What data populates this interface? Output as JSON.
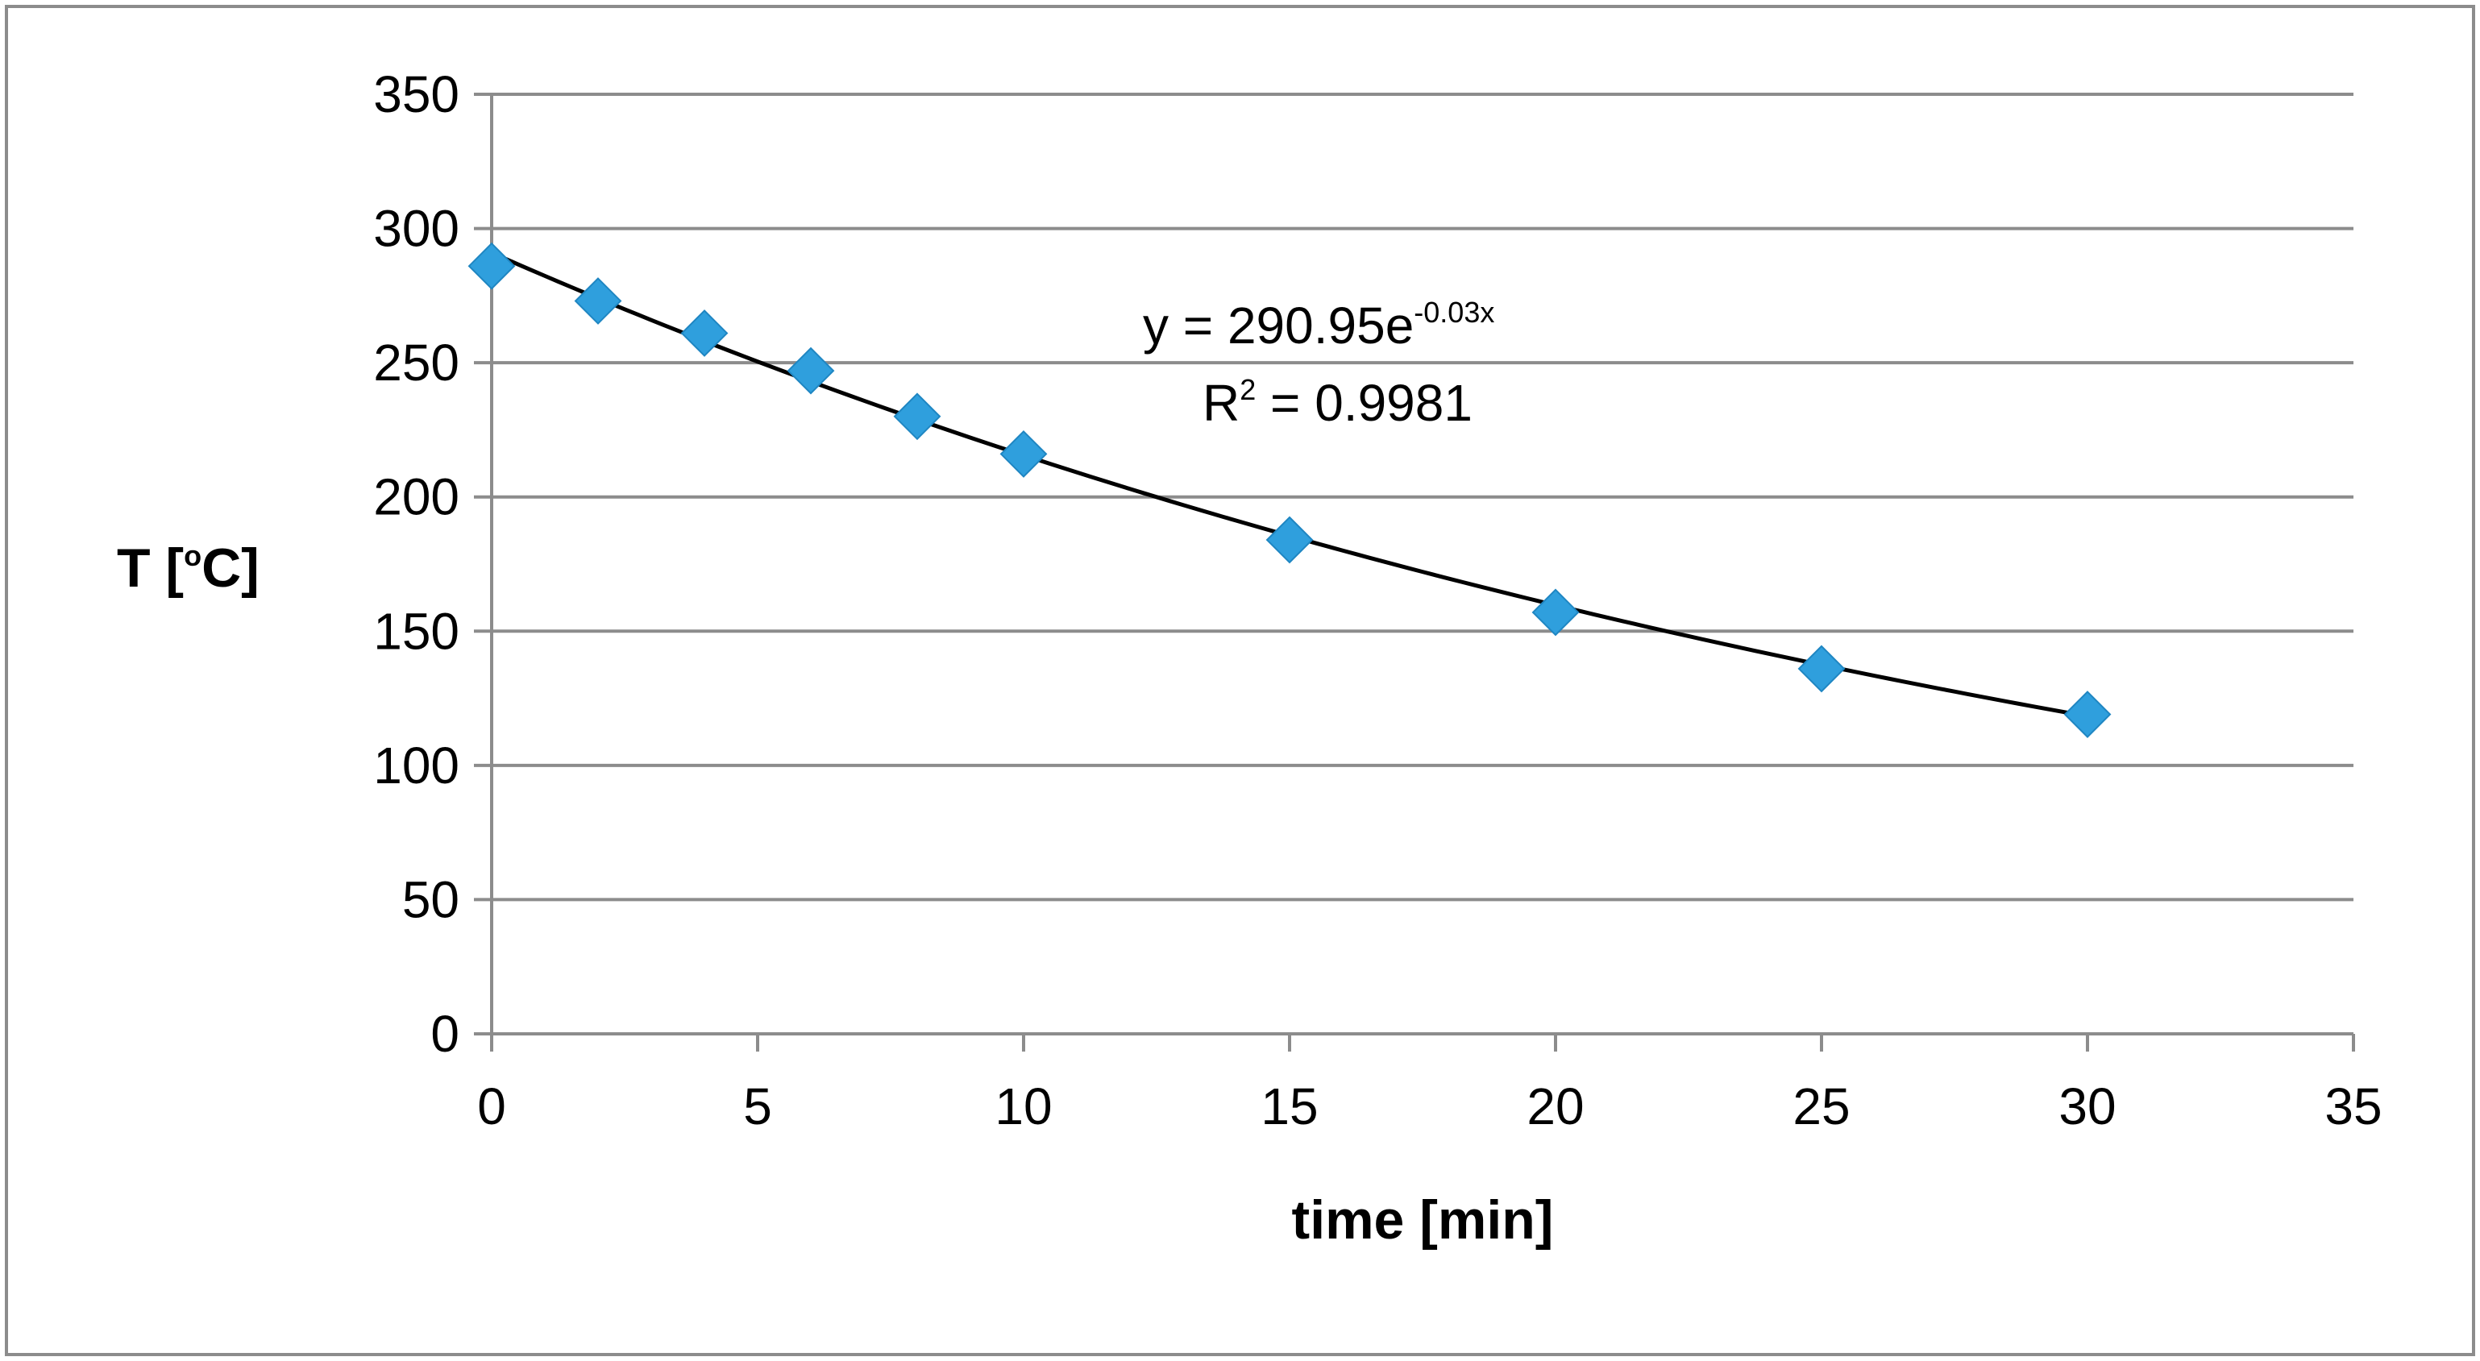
{
  "chart_data": {
    "type": "scatter",
    "title": "",
    "xlabel": "time [min]",
    "ylabel_main": "T [",
    "ylabel_sup": "o",
    "ylabel_tail": "C]",
    "xlim": [
      0,
      35
    ],
    "ylim": [
      0,
      350
    ],
    "xticks": [
      0,
      5,
      10,
      15,
      20,
      25,
      30,
      35
    ],
    "yticks": [
      0,
      50,
      100,
      150,
      200,
      250,
      300,
      350
    ],
    "grid": "horizontal",
    "series": [
      {
        "name": "T",
        "x": [
          0,
          2,
          4,
          6,
          8,
          10,
          15,
          20,
          25,
          30
        ],
        "y": [
          286,
          273,
          261,
          247,
          230,
          216,
          184,
          157,
          136,
          119
        ],
        "marker": "diamond",
        "color": "#2f9fdd"
      }
    ],
    "trendline": {
      "type": "exponential",
      "a": 290.95,
      "b": -0.03,
      "x_range": [
        0,
        30
      ],
      "color": "#000000"
    },
    "equation": {
      "prefix": "y = 290.95e",
      "exponent": "-0.03x",
      "r2_prefix": "R",
      "r2_sup": "2",
      "r2_value": " = 0.9981"
    }
  }
}
